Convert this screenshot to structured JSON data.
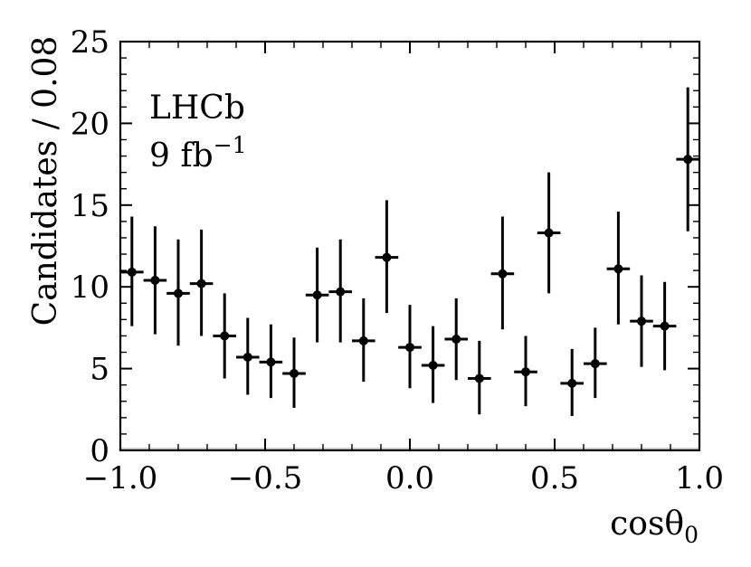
{
  "chart_data": {
    "type": "scatter",
    "title": "",
    "xlabel": "cosθ",
    "xlabel_sub": "0",
    "ylabel": "Candidates / 0.08",
    "xlim": [
      -1.0,
      1.0
    ],
    "ylim": [
      0,
      25
    ],
    "xticks": [
      -1.0,
      -0.5,
      0.0,
      0.5,
      1.0
    ],
    "xtick_labels": [
      "−1.0",
      "−0.5",
      "0.0",
      "0.5",
      "1.0"
    ],
    "yticks": [
      0,
      5,
      10,
      15,
      20,
      25
    ],
    "ytick_labels": [
      "0",
      "5",
      "10",
      "15",
      "20",
      "25"
    ],
    "grid": false,
    "annotations": {
      "experiment": "LHCb",
      "lumi": "9 fb",
      "lumi_sup": "−1"
    },
    "bin_half_width": 0.04,
    "series": [
      {
        "x": [
          -0.96,
          -0.88,
          -0.8,
          -0.72,
          -0.64,
          -0.56,
          -0.48,
          -0.4,
          -0.32,
          -0.24,
          -0.16,
          -0.08,
          0.0,
          0.08,
          0.16,
          0.24,
          0.32,
          0.4,
          0.48,
          0.56,
          0.64,
          0.72,
          0.8,
          0.88,
          0.96
        ],
        "y": [
          10.9,
          10.4,
          9.6,
          10.2,
          7.0,
          5.7,
          5.4,
          4.7,
          9.5,
          9.7,
          6.7,
          11.8,
          6.3,
          5.2,
          6.8,
          4.4,
          10.8,
          4.8,
          13.3,
          4.1,
          5.3,
          11.1,
          7.9,
          7.6,
          17.8
        ],
        "yerr_up": [
          3.4,
          3.3,
          3.3,
          3.3,
          2.6,
          2.4,
          2.3,
          2.2,
          2.9,
          3.2,
          2.6,
          3.5,
          2.6,
          2.4,
          2.5,
          2.3,
          3.5,
          2.2,
          3.7,
          2.1,
          2.2,
          3.5,
          2.8,
          2.7,
          4.4
        ],
        "yerr_down": [
          3.3,
          3.3,
          3.2,
          3.2,
          2.6,
          2.3,
          2.2,
          2.1,
          2.9,
          3.1,
          2.5,
          3.4,
          2.5,
          2.3,
          2.5,
          2.2,
          3.4,
          2.1,
          3.7,
          2.0,
          2.1,
          3.4,
          2.8,
          2.7,
          4.4
        ]
      }
    ]
  }
}
